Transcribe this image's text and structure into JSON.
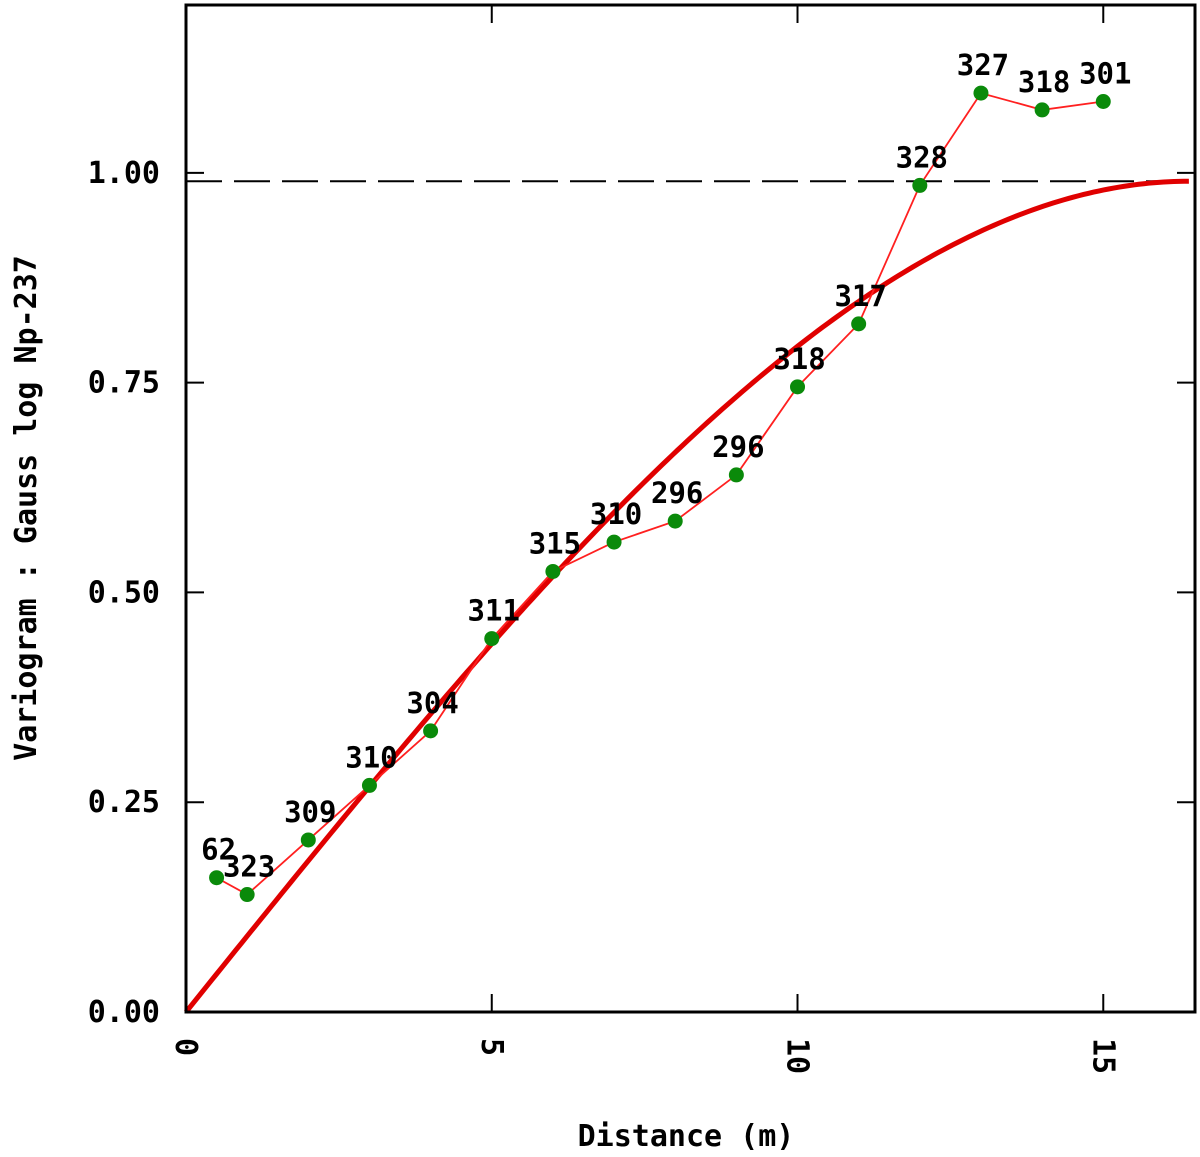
{
  "chart_data": {
    "type": "line",
    "title": "",
    "xlabel": "Distance (m)",
    "ylabel": "Variogram : Gauss log Np-237",
    "xlim": [
      0,
      16.5
    ],
    "ylim": [
      0,
      1.2
    ],
    "x_ticks": [
      "0",
      "5",
      "10",
      "15"
    ],
    "y_ticks": [
      "0.00",
      "0.25",
      "0.50",
      "0.75",
      "1.00"
    ],
    "grid": false,
    "legend": "none",
    "sill": 0.99,
    "model": {
      "name": "Gaussian model fit",
      "sill": 0.99,
      "range": 16.4,
      "color": "#e00000"
    },
    "series": [
      {
        "x": [
          0.5,
          1,
          2,
          3,
          4,
          5,
          6,
          7,
          8,
          9,
          10,
          11,
          12,
          13,
          14,
          15
        ],
        "y": [
          0.16,
          0.14,
          0.205,
          0.27,
          0.335,
          0.445,
          0.525,
          0.56,
          0.585,
          0.64,
          0.745,
          0.82,
          0.985,
          1.095,
          1.075,
          1.085
        ],
        "labels": [
          "62",
          "323",
          "309",
          "310",
          "304",
          "311",
          "315",
          "310",
          "296",
          "296",
          "318",
          "317",
          "328",
          "327",
          "318",
          "301"
        ],
        "line_color": "#ff2020",
        "marker_color": "#0a8a0a"
      }
    ]
  }
}
